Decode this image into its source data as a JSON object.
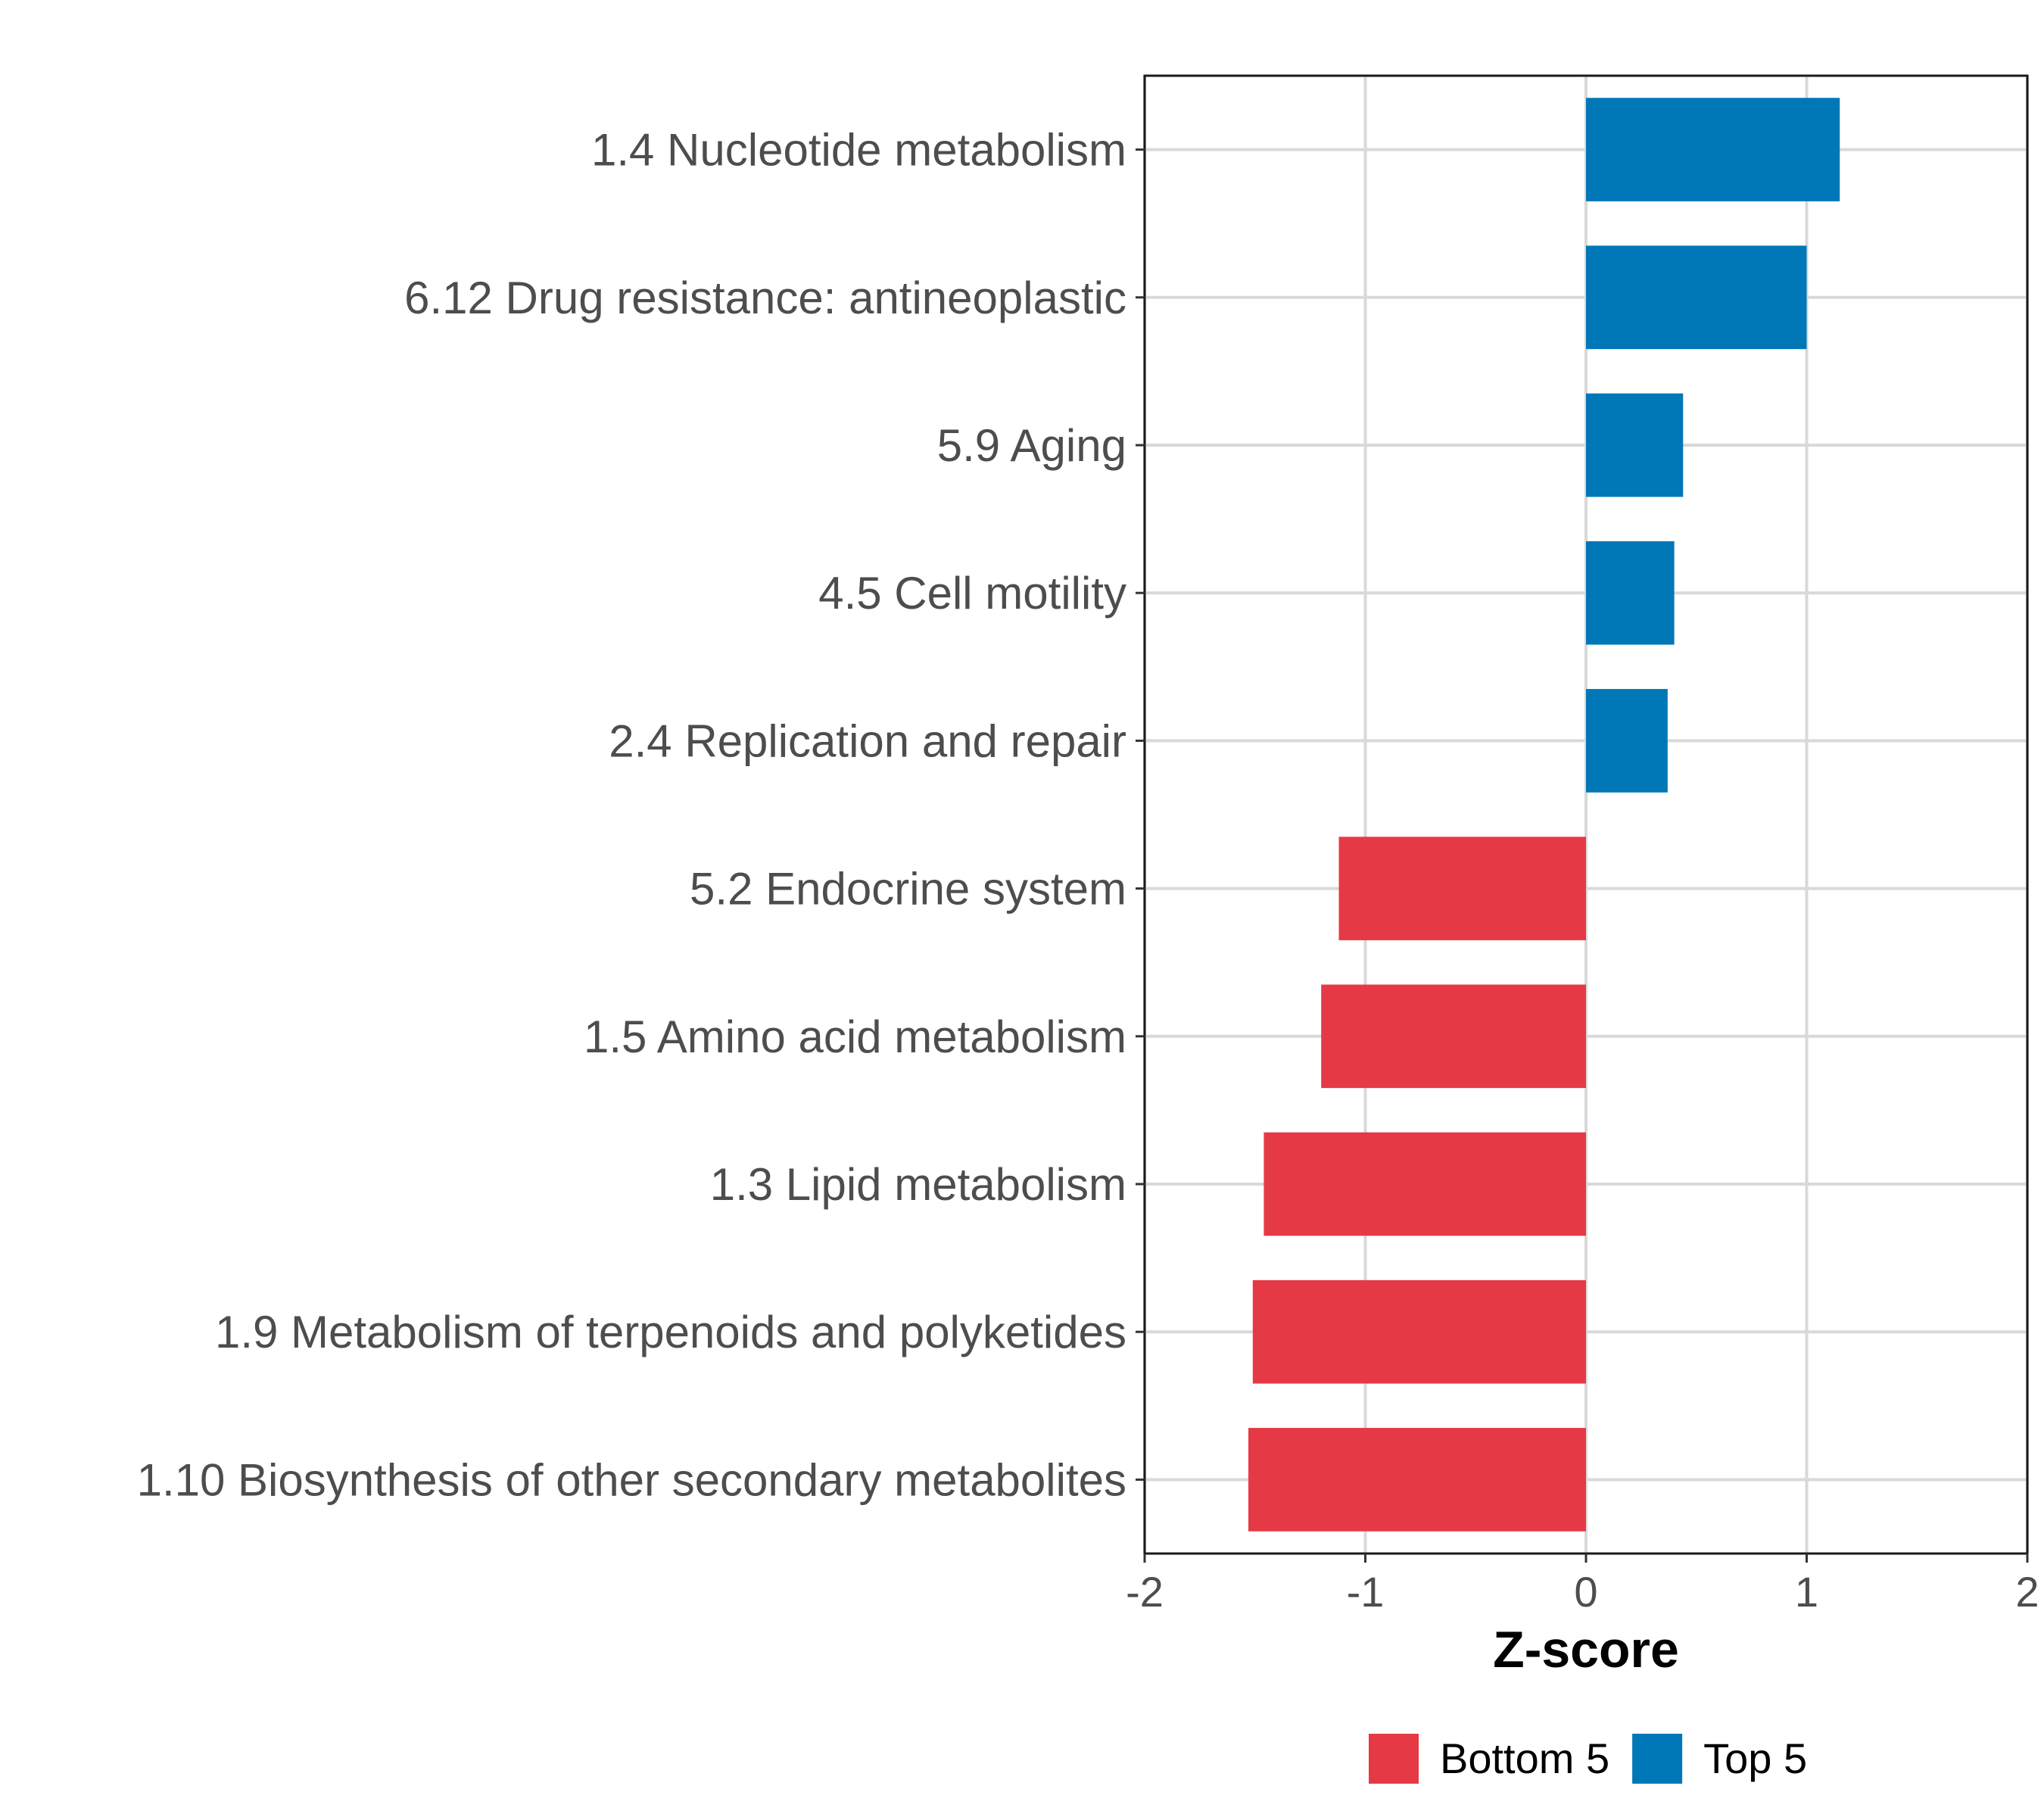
{
  "chart_data": {
    "type": "bar",
    "orientation": "horizontal",
    "categories": [
      "1.4 Nucleotide metabolism",
      "6.12 Drug resistance: antineoplastic",
      "5.9 Aging",
      "4.5 Cell motility",
      "2.4 Replication and repair",
      "5.2 Endocrine system",
      "1.5 Amino acid metabolism",
      "1.3 Lipid metabolism",
      "1.9 Metabolism of terpenoids and polyketides",
      "1.10 Biosynthesis of other secondary metabolites"
    ],
    "values": [
      1.15,
      1.0,
      0.44,
      0.4,
      0.37,
      -1.12,
      -1.2,
      -1.46,
      -1.51,
      -1.53
    ],
    "groups": [
      "Top 5",
      "Top 5",
      "Top 5",
      "Top 5",
      "Top 5",
      "Bottom 5",
      "Bottom 5",
      "Bottom 5",
      "Bottom 5",
      "Bottom 5"
    ],
    "xlabel": "Z-score",
    "ylabel": "",
    "xlim": [
      -2,
      2
    ],
    "xticks": [
      -2,
      -1,
      0,
      1,
      2
    ],
    "xtick_labels": [
      "-2",
      "-1",
      "0",
      "1",
      "2"
    ],
    "grid": true,
    "legend": {
      "position": "bottom",
      "entries": [
        {
          "label": "Bottom 5",
          "color": "#e63946"
        },
        {
          "label": "Top 5",
          "color": "#0077b6"
        }
      ]
    }
  }
}
